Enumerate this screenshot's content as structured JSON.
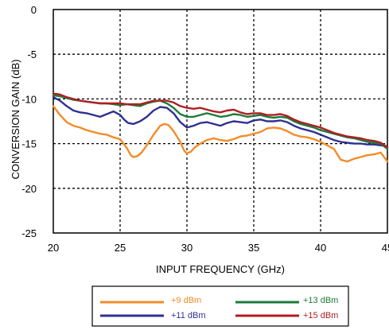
{
  "chart_data": {
    "type": "line",
    "title": "",
    "xlabel": "INPUT FREQUENCY (GHz)",
    "ylabel": "CONVERSION GAIN (dB)",
    "xlim": [
      20,
      45
    ],
    "ylim": [
      -25,
      0
    ],
    "xticks": [
      20,
      25,
      30,
      35,
      40,
      45
    ],
    "yticks": [
      0,
      -5,
      -10,
      -15,
      -20,
      -25
    ],
    "grid": true,
    "legend_position": "bottom",
    "series": [
      {
        "name": "+9 dBm",
        "color": "#f28c28",
        "x": [
          20,
          20.5,
          21,
          21.5,
          22,
          22.5,
          23,
          23.5,
          24,
          24.5,
          25,
          25.5,
          25.8,
          26,
          26.3,
          26.6,
          27,
          27.5,
          28,
          28.3,
          28.6,
          29,
          29.5,
          29.8,
          30,
          30.3,
          30.6,
          31,
          31.5,
          32,
          32.5,
          33,
          33.5,
          34,
          34.5,
          35,
          35.5,
          36,
          36.5,
          37,
          37.5,
          38,
          38.5,
          39,
          39.5,
          40,
          40.5,
          41,
          41.5,
          42,
          42.5,
          43,
          43.5,
          44,
          44.5,
          45
        ],
        "values": [
          -10.8,
          -11.8,
          -12.6,
          -13.0,
          -13.2,
          -13.5,
          -13.7,
          -13.9,
          -14.0,
          -14.3,
          -14.5,
          -15.5,
          -16.3,
          -16.5,
          -16.4,
          -16.0,
          -15.2,
          -14.0,
          -13.0,
          -12.8,
          -12.9,
          -13.6,
          -14.8,
          -15.8,
          -16.1,
          -15.9,
          -15.4,
          -15.0,
          -14.6,
          -14.4,
          -14.6,
          -14.7,
          -14.5,
          -14.2,
          -14.1,
          -13.9,
          -13.7,
          -13.3,
          -13.2,
          -13.3,
          -13.6,
          -14.0,
          -14.2,
          -14.3,
          -14.5,
          -14.8,
          -15.2,
          -15.6,
          -16.8,
          -17.0,
          -16.7,
          -16.5,
          -16.3,
          -16.2,
          -16.0,
          -17.0
        ]
      },
      {
        "name": "+11 dBm",
        "color": "#2e3192",
        "x": [
          20,
          20.5,
          21,
          21.5,
          22,
          22.5,
          23,
          23.5,
          24,
          24.5,
          25,
          25.3,
          25.6,
          26,
          26.5,
          27,
          27.5,
          28,
          28.5,
          29,
          29.5,
          30,
          30.5,
          31,
          31.5,
          32,
          32.5,
          33,
          33.5,
          34,
          34.5,
          35,
          35.5,
          36,
          36.5,
          37,
          37.5,
          38,
          38.5,
          39,
          39.5,
          40,
          40.5,
          41,
          41.5,
          42,
          42.5,
          43,
          43.5,
          44,
          44.5,
          45
        ],
        "values": [
          -9.8,
          -10.2,
          -10.8,
          -11.3,
          -11.5,
          -11.6,
          -11.8,
          -12.0,
          -11.7,
          -11.4,
          -11.8,
          -12.3,
          -12.7,
          -12.8,
          -12.5,
          -12.0,
          -11.3,
          -10.9,
          -11.0,
          -11.6,
          -12.6,
          -13.2,
          -13.0,
          -12.7,
          -12.6,
          -12.8,
          -13.0,
          -12.7,
          -12.5,
          -12.6,
          -12.7,
          -12.4,
          -12.3,
          -12.5,
          -12.5,
          -12.4,
          -12.6,
          -13.0,
          -13.3,
          -13.5,
          -13.7,
          -14.0,
          -14.3,
          -14.6,
          -14.8,
          -14.9,
          -15.0,
          -15.0,
          -15.1,
          -15.1,
          -15.2,
          -15.3
        ]
      },
      {
        "name": "+13 dBm",
        "color": "#1e7b3a",
        "x": [
          20,
          20.5,
          21,
          21.5,
          22,
          22.5,
          23,
          23.5,
          24,
          24.5,
          25,
          25.5,
          26,
          26.5,
          27,
          27.5,
          28,
          28.5,
          29,
          29.5,
          30,
          30.5,
          31,
          31.5,
          32,
          32.5,
          33,
          33.5,
          34,
          34.5,
          35,
          35.5,
          36,
          36.5,
          37,
          37.5,
          38,
          38.5,
          39,
          39.5,
          40,
          40.5,
          41,
          41.5,
          42,
          42.5,
          43,
          43.5,
          44,
          44.5,
          45
        ],
        "values": [
          -9.6,
          -9.7,
          -9.9,
          -10.1,
          -10.2,
          -10.3,
          -10.4,
          -10.5,
          -10.5,
          -10.6,
          -10.7,
          -10.6,
          -10.7,
          -10.8,
          -10.5,
          -10.3,
          -10.2,
          -10.5,
          -11.0,
          -11.7,
          -12.0,
          -12.0,
          -11.8,
          -11.6,
          -11.8,
          -12.0,
          -11.9,
          -11.7,
          -11.8,
          -12.0,
          -11.9,
          -11.8,
          -12.0,
          -12.1,
          -12.0,
          -12.1,
          -12.5,
          -12.8,
          -13.0,
          -13.2,
          -13.5,
          -13.7,
          -13.9,
          -14.1,
          -14.3,
          -14.4,
          -14.6,
          -14.8,
          -14.9,
          -15.0,
          -15.6
        ]
      },
      {
        "name": "+15 dBm",
        "color": "#b01e23",
        "x": [
          20,
          20.5,
          21,
          21.5,
          22,
          22.5,
          23,
          23.5,
          24,
          24.5,
          25,
          25.5,
          26,
          26.5,
          27,
          27.5,
          28,
          28.5,
          29,
          29.5,
          30,
          30.5,
          31,
          31.5,
          32,
          32.5,
          33,
          33.5,
          34,
          34.5,
          35,
          35.5,
          36,
          36.5,
          37,
          37.5,
          38,
          38.5,
          39,
          39.5,
          40,
          40.5,
          41,
          41.5,
          42,
          42.5,
          43,
          43.5,
          44,
          44.5,
          45
        ],
        "values": [
          -9.4,
          -9.5,
          -9.8,
          -10.0,
          -10.2,
          -10.3,
          -10.4,
          -10.5,
          -10.5,
          -10.5,
          -10.5,
          -10.6,
          -10.6,
          -10.6,
          -10.4,
          -10.2,
          -10.2,
          -10.2,
          -10.4,
          -10.8,
          -11.0,
          -11.1,
          -11.0,
          -11.2,
          -11.4,
          -11.5,
          -11.3,
          -11.2,
          -11.5,
          -11.7,
          -11.6,
          -11.6,
          -11.8,
          -11.8,
          -11.7,
          -11.9,
          -12.3,
          -12.6,
          -12.8,
          -13.0,
          -13.2,
          -13.5,
          -13.8,
          -14.0,
          -14.2,
          -14.3,
          -14.4,
          -14.6,
          -14.7,
          -14.9,
          -15.4
        ]
      }
    ]
  }
}
